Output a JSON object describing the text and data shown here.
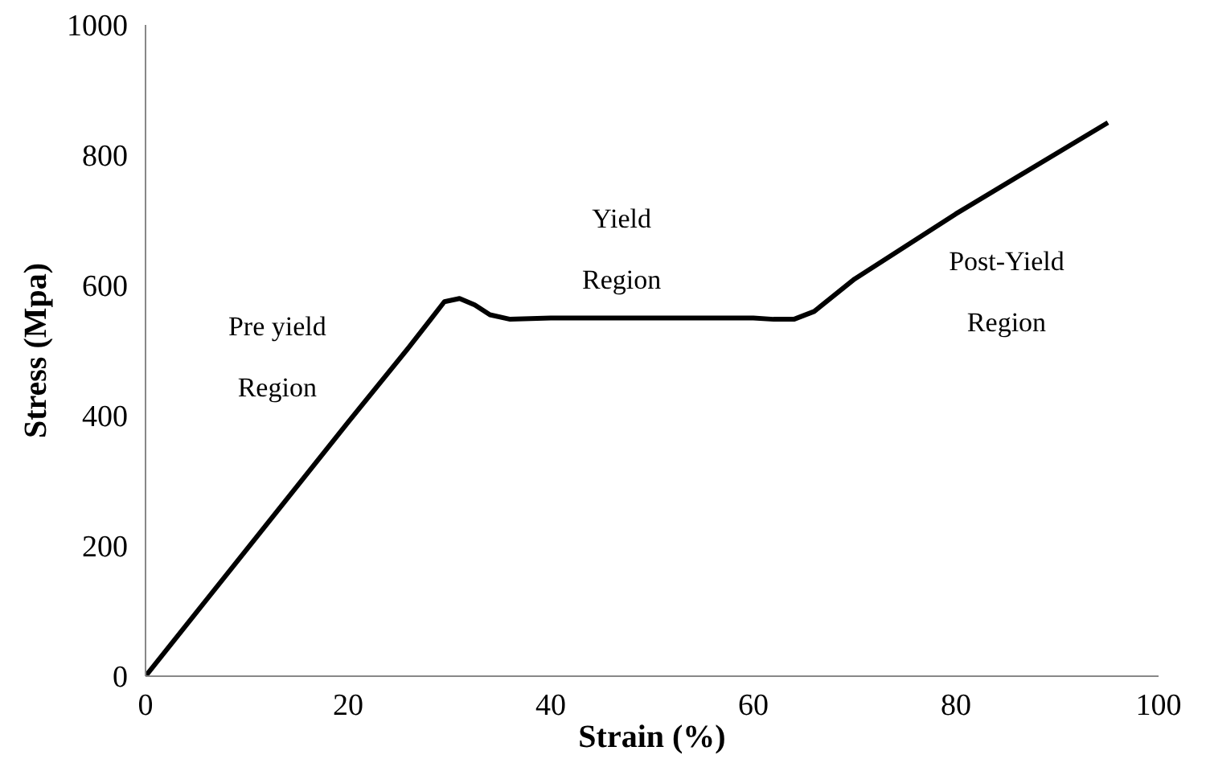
{
  "chart_data": {
    "type": "line",
    "xlabel": "Strain (%)",
    "ylabel": "Stress (Mpa)",
    "x": [
      0,
      10,
      20,
      26,
      28,
      29.5,
      31,
      32.5,
      34,
      36,
      40,
      50,
      60,
      62,
      64,
      66,
      68,
      70,
      80,
      95
    ],
    "series": [
      {
        "color": "#000000",
        "values": [
          0,
          195,
          390,
          505,
          545,
          575,
          580,
          570,
          555,
          548,
          550,
          550,
          550,
          548,
          548,
          560,
          585,
          610,
          710,
          850
        ]
      }
    ],
    "xlim": [
      0,
      100
    ],
    "ylim": [
      0,
      1000
    ],
    "xticks": [
      0,
      20,
      40,
      60,
      80,
      100
    ],
    "yticks": [
      0,
      200,
      400,
      600,
      800,
      1000
    ],
    "grid": false,
    "marker": "none",
    "line_style": "solid",
    "annotations": [
      "Pre yield\nRegion",
      "Yield\nRegion",
      "Post-Yield\nRegion"
    ]
  }
}
